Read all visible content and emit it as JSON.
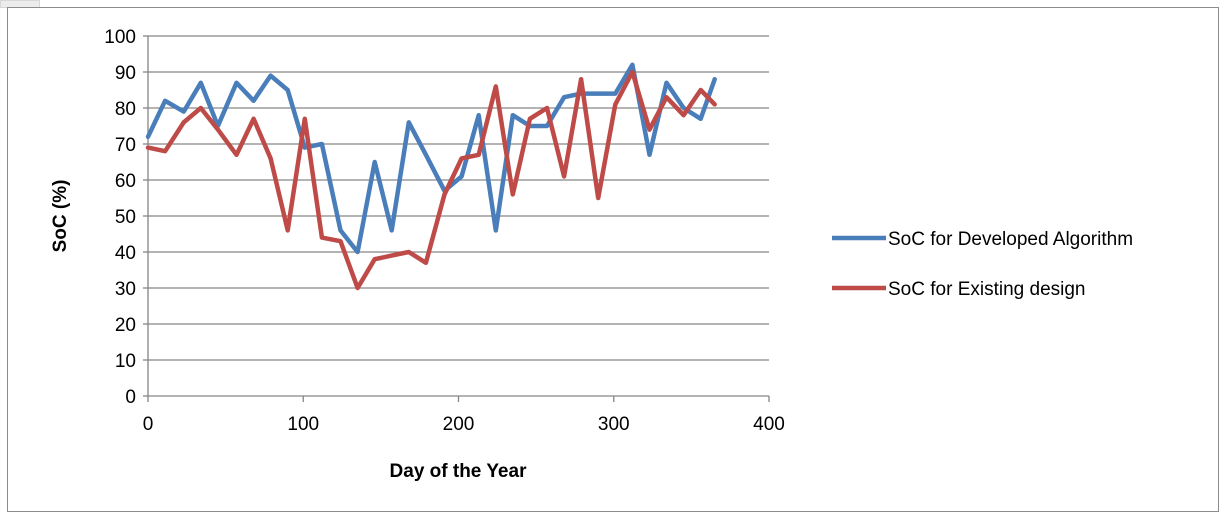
{
  "chart_data": {
    "type": "line",
    "xlabel": "Day of the Year",
    "ylabel": "SoC (%)",
    "xlim": [
      0,
      400
    ],
    "ylim": [
      0,
      100
    ],
    "xticks": [
      0,
      100,
      200,
      300,
      400
    ],
    "yticks": [
      0,
      10,
      20,
      30,
      40,
      50,
      60,
      70,
      80,
      90,
      100
    ],
    "grid": "horizontal",
    "legend_position": "right",
    "series": [
      {
        "name": "SoC for Developed Algorithm",
        "color": "#4a7ebb",
        "x": [
          0,
          11,
          23,
          34,
          45,
          57,
          68,
          79,
          90,
          101,
          112,
          124,
          135,
          146,
          157,
          168,
          179,
          191,
          202,
          213,
          224,
          235,
          246,
          257,
          268,
          279,
          290,
          301,
          312,
          323,
          334,
          345,
          356,
          365
        ],
        "y": [
          72,
          82,
          79,
          87,
          75,
          87,
          82,
          89,
          85,
          69,
          70,
          46,
          40,
          65,
          46,
          76,
          67,
          57,
          61,
          78,
          46,
          78,
          75,
          75,
          83,
          84,
          84,
          84,
          92,
          67,
          87,
          80,
          77,
          88
        ]
      },
      {
        "name": "SoC for Existing design",
        "color": "#be4b48",
        "x": [
          0,
          11,
          23,
          34,
          45,
          57,
          68,
          79,
          90,
          101,
          112,
          124,
          135,
          146,
          157,
          168,
          179,
          191,
          202,
          213,
          224,
          235,
          246,
          257,
          268,
          279,
          290,
          301,
          312,
          323,
          334,
          345,
          356,
          365
        ],
        "y": [
          69,
          68,
          76,
          80,
          74,
          67,
          77,
          66,
          46,
          77,
          44,
          43,
          30,
          38,
          39,
          40,
          37,
          56,
          66,
          67,
          86,
          56,
          77,
          80,
          61,
          88,
          55,
          81,
          90,
          74,
          83,
          78,
          85,
          81
        ]
      }
    ]
  }
}
